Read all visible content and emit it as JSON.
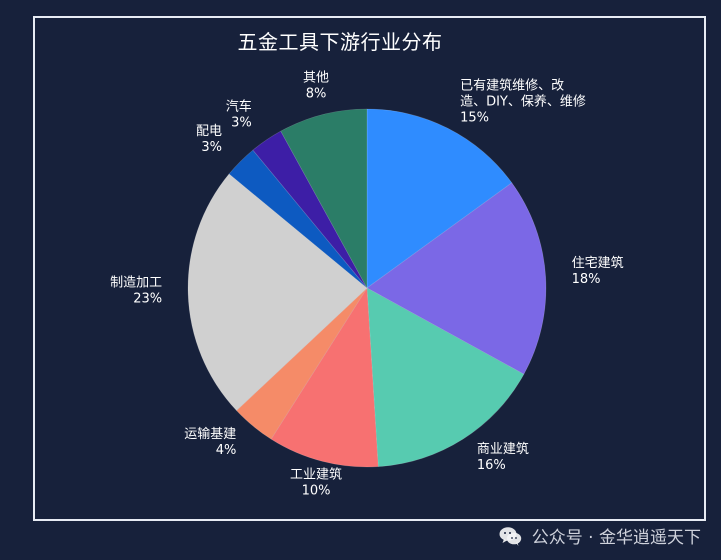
{
  "chart_data": {
    "type": "pie",
    "title": "五金工具下游行业分布",
    "slices": [
      {
        "label_lines": [
          "已有建筑维修、改",
          "造、DIY、保养、维修"
        ],
        "value": 15,
        "value_label": "15%",
        "color": "#2f8cff"
      },
      {
        "label_lines": [
          "住宅建筑"
        ],
        "value": 18,
        "value_label": "18%",
        "color": "#7b68e6"
      },
      {
        "label_lines": [
          "商业建筑"
        ],
        "value": 16,
        "value_label": "16%",
        "color": "#57cbb0"
      },
      {
        "label_lines": [
          "工业建筑"
        ],
        "value": 10,
        "value_label": "10%",
        "color": "#f77171"
      },
      {
        "label_lines": [
          "运输基建"
        ],
        "value": 4,
        "value_label": "4%",
        "color": "#f58b68"
      },
      {
        "label_lines": [
          "制造加工"
        ],
        "value": 23,
        "value_label": "23%",
        "color": "#d0d0d0"
      },
      {
        "label_lines": [
          "配电"
        ],
        "value": 3,
        "value_label": "3%",
        "color": "#0d5ac1"
      },
      {
        "label_lines": [
          "汽车"
        ],
        "value": 3,
        "value_label": "3%",
        "color": "#3d1ea6"
      },
      {
        "label_lines": [
          "其他"
        ],
        "value": 8,
        "value_label": "8%",
        "color": "#2b7d67"
      }
    ]
  },
  "watermark": {
    "icon": "wechat-icon",
    "text": "公众号 · 金华逍遥天下"
  }
}
